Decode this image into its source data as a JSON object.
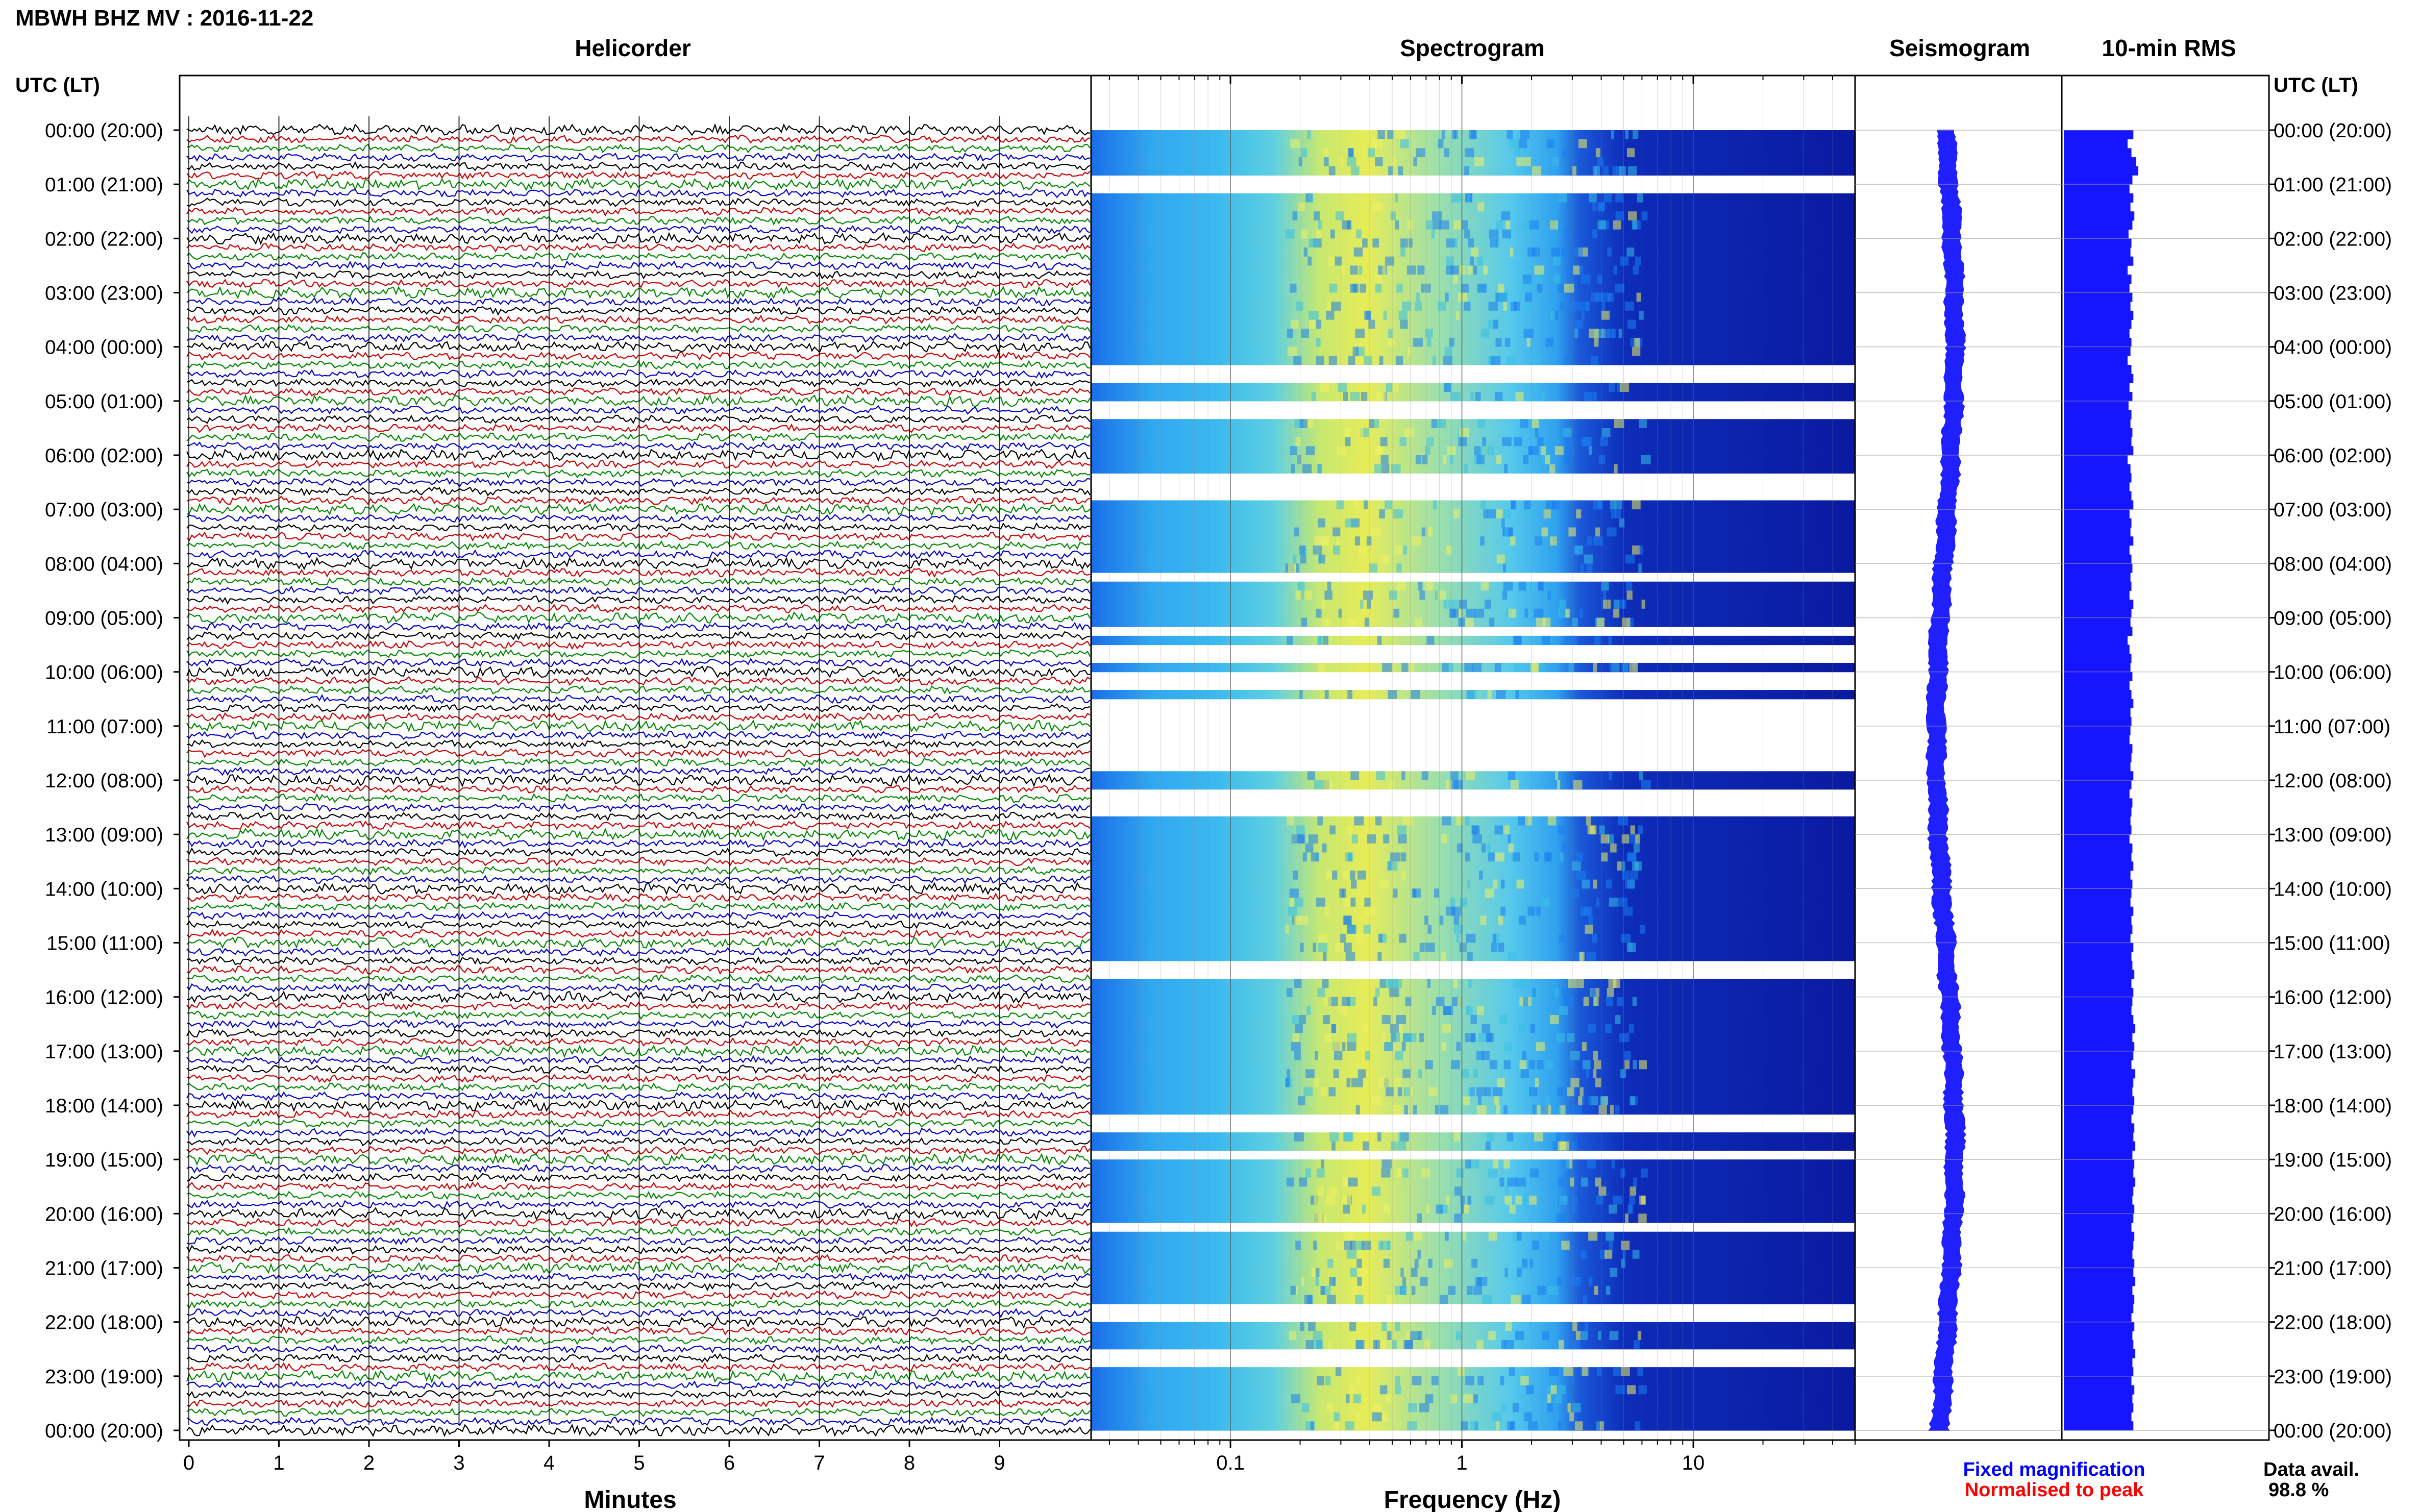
{
  "header": {
    "station_title": "MBWH BHZ MV : 2016-11-22",
    "time_axis_label": "UTC (LT)"
  },
  "panels": {
    "helicorder": "Helicorder",
    "spectrogram": "Spectrogram",
    "seismogram": "Seismogram",
    "rms": "10-min RMS"
  },
  "footer": {
    "fixed_magnification": "Fixed magnification",
    "normalised_to_peak": "Normalised to peak",
    "data_avail_label": "Data avail.",
    "data_avail_value": "98.8 %"
  },
  "colors": {
    "trace_cycle": [
      "#000000",
      "#cc0000",
      "#008800",
      "#0000cc"
    ],
    "seismogram_blue": "#2020ff",
    "rms_blue": "#1515ff",
    "fixed_magnification": "#0000ff",
    "normalised_to_peak": "#ff0000",
    "spectrogram_colormap": [
      "#0d1aa6",
      "#1858e0",
      "#35b8f0",
      "#7ee0c8",
      "#d8e860"
    ]
  },
  "chart_data": [
    {
      "type": "helicorder",
      "title": "Helicorder",
      "xlabel": "Minutes",
      "ylabel": "UTC (LT)",
      "xlim": [
        0,
        10
      ],
      "x_ticks": [
        "0",
        "1",
        "2",
        "3",
        "4",
        "5",
        "6",
        "7",
        "8",
        "9"
      ],
      "y_ticks": [
        "00:00 (20:00)",
        "01:00 (21:00)",
        "02:00 (22:00)",
        "03:00 (23:00)",
        "04:00 (00:00)",
        "05:00 (01:00)",
        "06:00 (02:00)",
        "07:00 (03:00)",
        "08:00 (04:00)",
        "09:00 (05:00)",
        "10:00 (06:00)",
        "11:00 (07:00)",
        "12:00 (08:00)",
        "13:00 (09:00)",
        "14:00 (10:00)",
        "15:00 (11:00)",
        "16:00 (12:00)",
        "17:00 (13:00)",
        "18:00 (14:00)",
        "19:00 (15:00)",
        "20:00 (16:00)",
        "21:00 (17:00)",
        "22:00 (18:00)",
        "23:00 (19:00)",
        "00:00 (20:00)"
      ],
      "trace_count": 144,
      "grid": true
    },
    {
      "type": "heatmap",
      "title": "Spectrogram",
      "xlabel": "Frequency (Hz)",
      "x_scale": "log",
      "xlim": [
        0.025,
        50
      ],
      "x_ticks": [
        "0.1",
        "1",
        "10"
      ],
      "rows": 144,
      "gap_rows": [
        5,
        6,
        26,
        27,
        30,
        31,
        38,
        39,
        40,
        49,
        55,
        57,
        58,
        60,
        61,
        63,
        64,
        65,
        66,
        67,
        68,
        69,
        70,
        73,
        74,
        75,
        92,
        93,
        109,
        110,
        113,
        121,
        130,
        131,
        135,
        136
      ]
    },
    {
      "type": "line",
      "title": "Seismogram",
      "orientation": "vertical",
      "note": "amplitude envelope per hour",
      "rows": 24
    },
    {
      "type": "bar",
      "title": "10-min RMS",
      "orientation": "horizontal",
      "values": [
        0.72,
        0.66,
        0.7,
        0.75,
        0.77,
        0.71,
        0.68,
        0.72,
        0.69,
        0.73,
        0.71,
        0.67,
        0.7,
        0.69,
        0.72,
        0.66,
        0.7,
        0.68,
        0.71,
        0.69,
        0.72,
        0.7,
        0.68,
        0.7,
        0.69,
        0.66,
        0.7,
        0.72,
        0.68,
        0.71,
        0.67,
        0.7,
        0.69,
        0.71,
        0.7,
        0.72,
        0.66,
        0.69,
        0.7,
        0.68,
        0.7,
        0.72,
        0.68,
        0.7,
        0.69,
        0.72,
        0.68,
        0.7,
        0.71,
        0.69,
        0.7,
        0.68,
        0.72,
        0.7,
        0.69,
        0.71,
        0.66,
        0.68,
        0.7,
        0.69,
        0.71,
        0.68,
        0.7,
        0.72,
        0.69,
        0.7,
        0.69,
        0.68,
        0.71,
        0.7,
        0.69,
        0.72,
        0.7,
        0.68,
        0.71,
        0.7,
        0.69,
        0.7,
        0.68,
        0.71,
        0.7,
        0.72,
        0.69,
        0.71,
        0.7,
        0.69,
        0.72,
        0.7,
        0.71,
        0.69,
        0.72,
        0.7,
        0.71,
        0.73,
        0.7,
        0.72,
        0.71,
        0.7,
        0.72,
        0.74,
        0.71,
        0.73,
        0.72,
        0.7,
        0.74,
        0.72,
        0.71,
        0.73,
        0.72,
        0.7,
        0.73,
        0.72,
        0.74,
        0.71,
        0.73,
        0.72,
        0.74,
        0.72,
        0.71,
        0.73,
        0.72,
        0.7,
        0.73,
        0.72,
        0.71,
        0.73,
        0.72,
        0.74,
        0.71,
        0.73,
        0.72,
        0.7,
        0.73,
        0.71,
        0.72,
        0.74,
        0.71,
        0.72,
        0.7,
        0.73,
        0.71,
        0.72,
        0.7,
        0.72
      ]
    }
  ]
}
